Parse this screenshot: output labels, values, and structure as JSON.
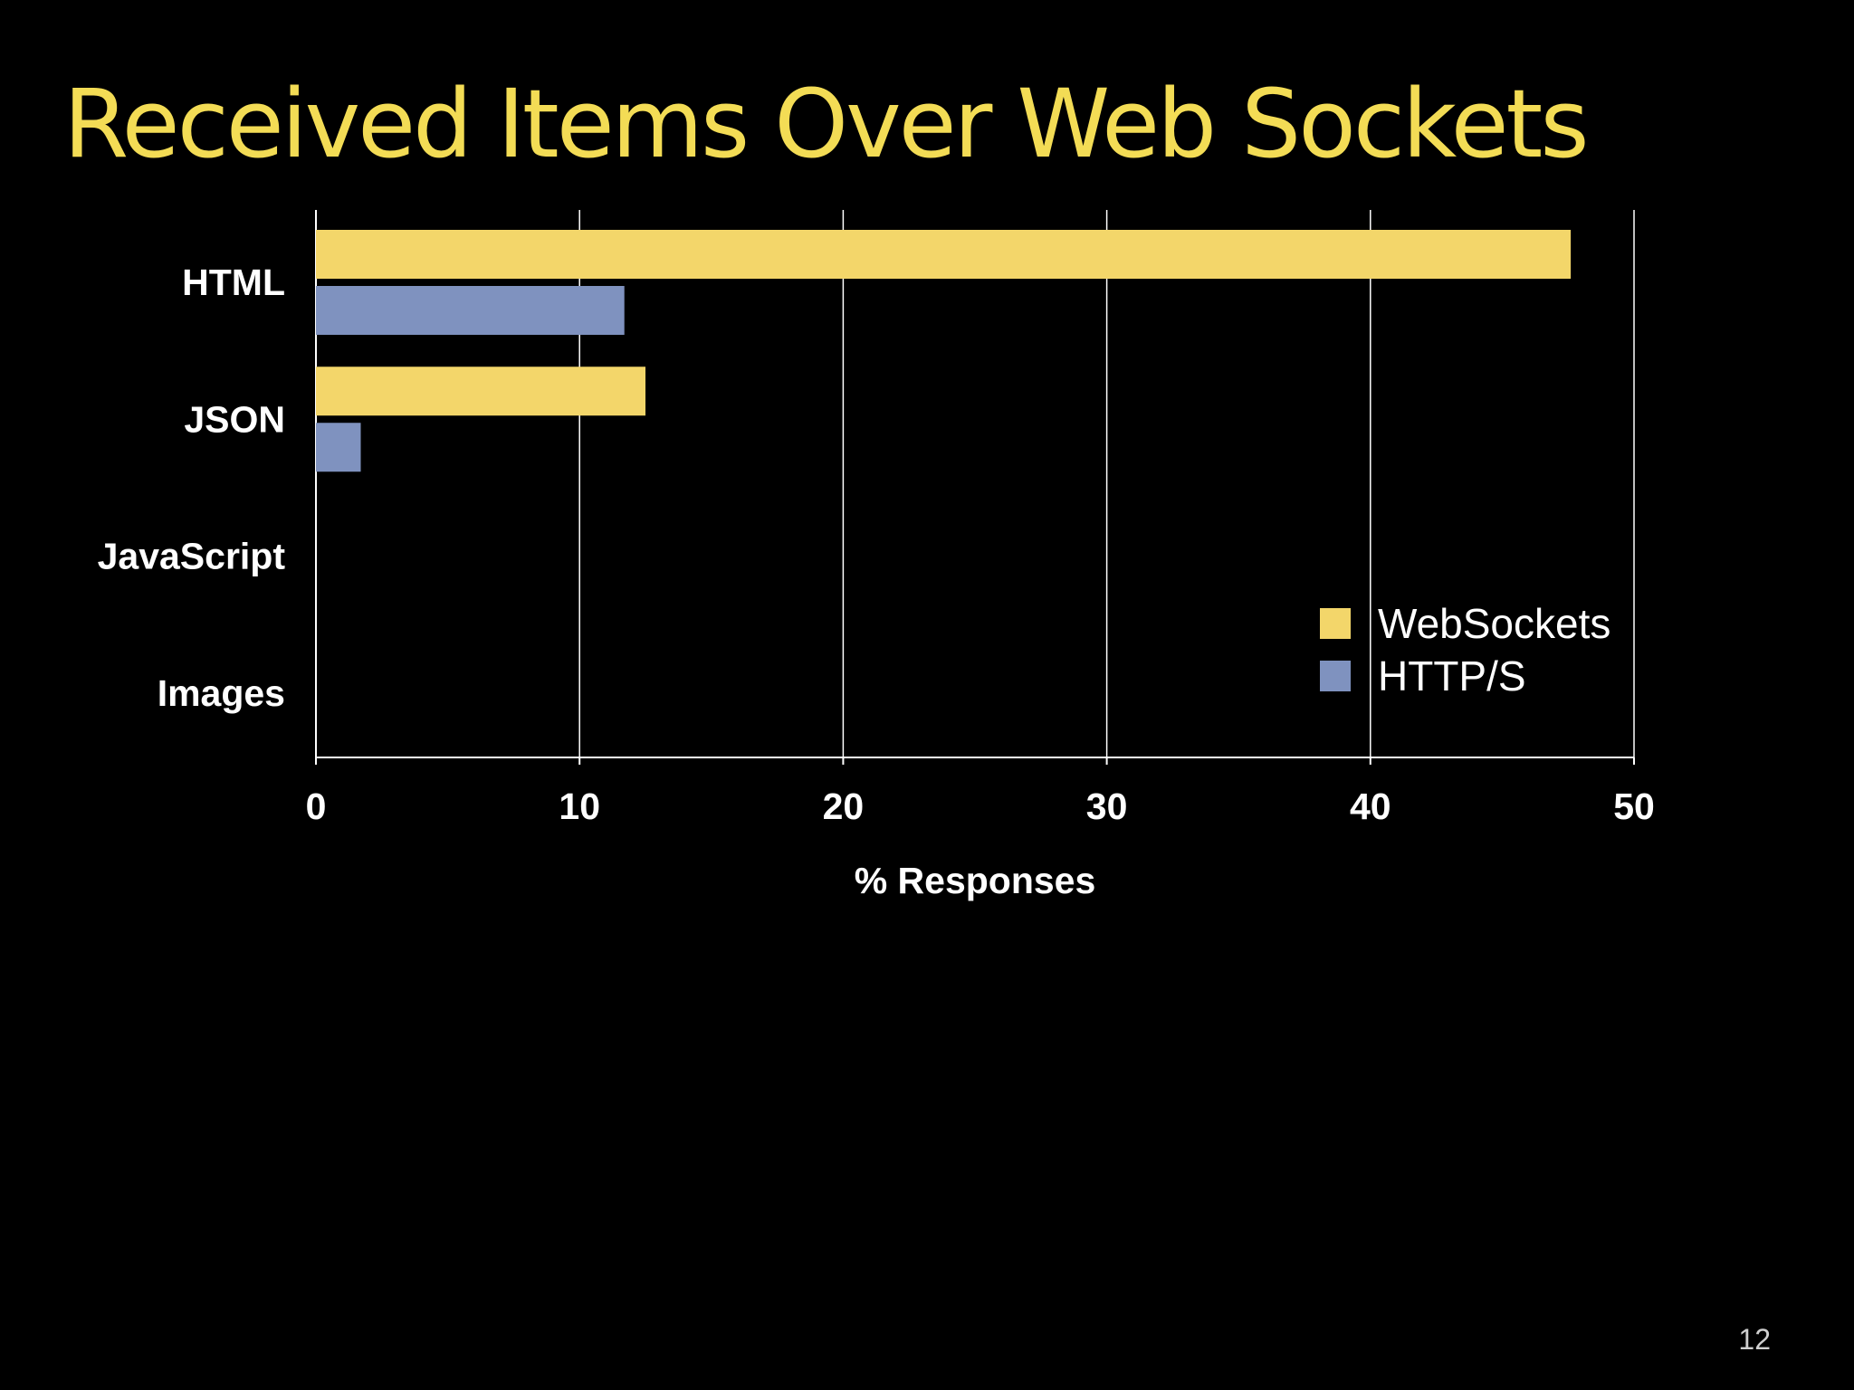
{
  "slide": {
    "title": "Received Items Over Web Sockets",
    "page_number": "12"
  },
  "colors": {
    "background": "#000000",
    "title": "#f3dc55",
    "websockets": "#f3d66a",
    "https": "#7f92bf",
    "text": "#ffffff",
    "grid": "#ffffff"
  },
  "chart_data": {
    "type": "bar",
    "orientation": "horizontal",
    "categories": [
      "HTML",
      "JSON",
      "JavaScript",
      "Images"
    ],
    "series": [
      {
        "name": "WebSockets",
        "color": "#f3d66a",
        "values": [
          47.6,
          12.5,
          0,
          0
        ]
      },
      {
        "name": "HTTP/S",
        "color": "#7f92bf",
        "values": [
          11.7,
          1.7,
          0,
          0
        ]
      }
    ],
    "xlabel": "% Responses",
    "ylabel": "",
    "xlim": [
      0,
      50
    ],
    "xticks": [
      "0",
      "10",
      "20",
      "30",
      "40",
      "50"
    ],
    "grid": "vertical",
    "legend_position": "bottom-right-inside"
  }
}
